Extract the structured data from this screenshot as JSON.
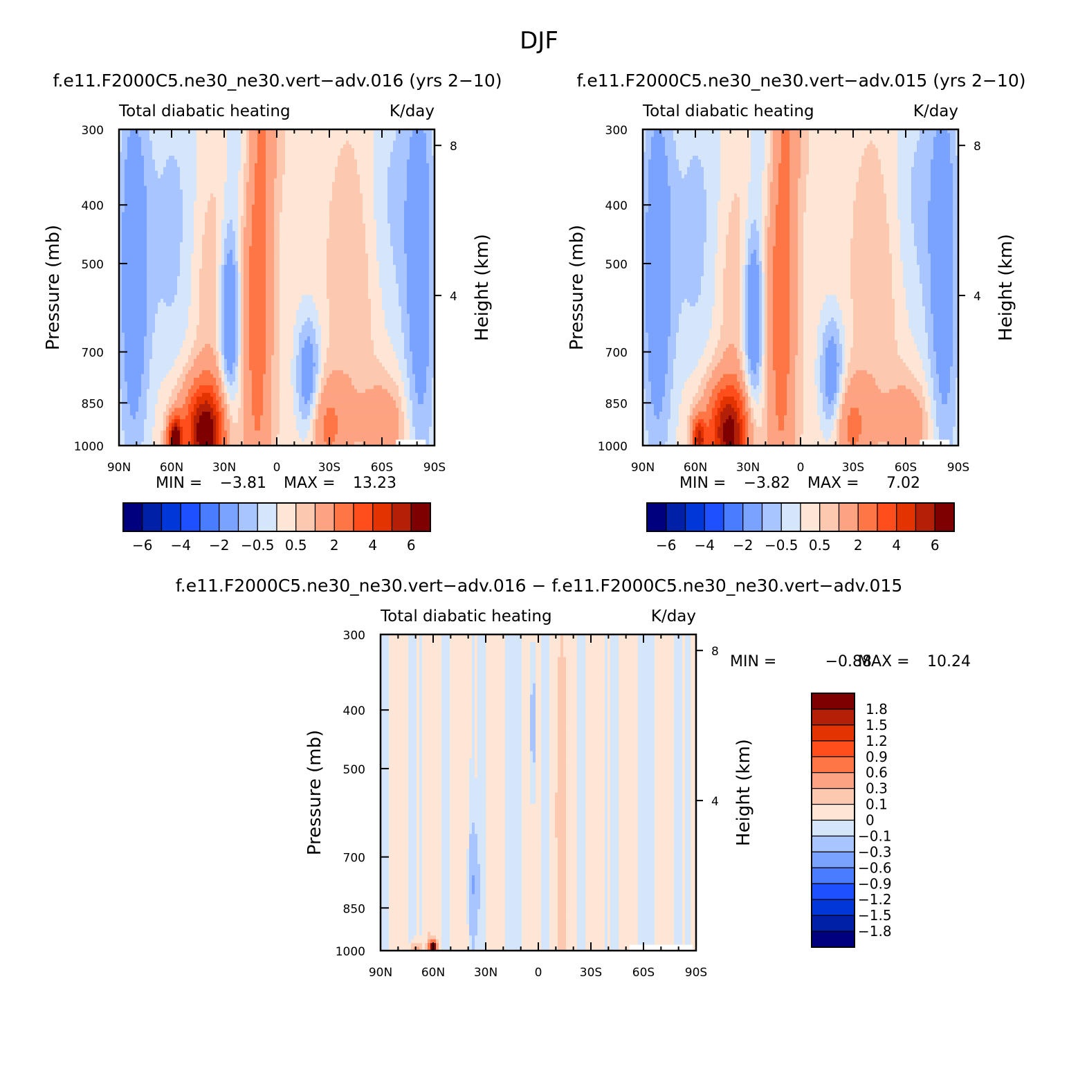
{
  "page_title": "DJF",
  "ticks": {
    "pressure": [
      "300",
      "400",
      "500",
      "700",
      "850",
      "1000"
    ],
    "pressure_values": [
      300,
      400,
      500,
      700,
      850,
      1000
    ],
    "latitude": [
      "90N",
      "60N",
      "30N",
      "0",
      "30S",
      "60S",
      "90S"
    ],
    "height": [
      "8",
      "4"
    ],
    "height_km": [
      8,
      4
    ]
  },
  "colors": {
    "diverging_16": [
      "#00007f",
      "#0020a8",
      "#0037d8",
      "#1e50ff",
      "#4a7cff",
      "#7aa3ff",
      "#a9c5ff",
      "#d5e6fb",
      "#fde6d6",
      "#fcc8b0",
      "#fda381",
      "#fe7645",
      "#ff4d1c",
      "#e33300",
      "#b42007",
      "#7f0000"
    ]
  },
  "chart_data": [
    {
      "type": "heatmap",
      "title": "f.e11.F2000C5.ne30_ne30.vert−adv.016 (yrs 2−10)",
      "left_string": "Total diabatic heating",
      "right_string": "K/day",
      "ylabel": "Pressure (mb)",
      "ylabel_right": "Height (km)",
      "xlim": [
        90,
        -90
      ],
      "ylim": [
        1000,
        300
      ],
      "y_log_scale": true,
      "min_label": "MIN =",
      "min_value": "−3.81",
      "max_label": "MAX =",
      "max_value": "13.23",
      "colorbar_orientation": "horizontal",
      "colorbar_levels": [
        -6,
        -5,
        -4,
        -3,
        -2,
        -1,
        -0.5,
        0,
        0.5,
        1,
        2,
        3,
        4,
        5,
        6
      ],
      "colorbar_labels": [
        "−6",
        "−4",
        "−2",
        "−0.5",
        "0.5",
        "2",
        "4",
        "6"
      ],
      "notable_regions": [
        {
          "lat": 12,
          "plev": 420,
          "value": 2.0
        },
        {
          "lat": 40,
          "plev": 970,
          "value": 5.5
        },
        {
          "lat": 58,
          "plev": 975,
          "value": 6.5
        },
        {
          "lat": 30,
          "plev": 620,
          "value": -2.0
        },
        {
          "lat": -20,
          "plev": 790,
          "value": -1.5
        },
        {
          "lat": 82,
          "plev": 500,
          "value": -1.5
        }
      ]
    },
    {
      "type": "heatmap",
      "title": "f.e11.F2000C5.ne30_ne30.vert−adv.015 (yrs 2−10)",
      "left_string": "Total diabatic heating",
      "right_string": "K/day",
      "ylabel": "Pressure (mb)",
      "ylabel_right": "Height (km)",
      "xlim": [
        90,
        -90
      ],
      "ylim": [
        1000,
        300
      ],
      "y_log_scale": true,
      "min_label": "MIN =",
      "min_value": "−3.82",
      "max_label": "MAX =",
      "max_value": "7.02",
      "colorbar_orientation": "horizontal",
      "colorbar_levels": [
        -6,
        -5,
        -4,
        -3,
        -2,
        -1,
        -0.5,
        0,
        0.5,
        1,
        2,
        3,
        4,
        5,
        6
      ],
      "colorbar_labels": [
        "−6",
        "−4",
        "−2",
        "−0.5",
        "0.5",
        "2",
        "4",
        "6"
      ],
      "notable_regions": [
        {
          "lat": 12,
          "plev": 420,
          "value": 2.0
        },
        {
          "lat": 40,
          "plev": 970,
          "value": 5.0
        },
        {
          "lat": 58,
          "plev": 975,
          "value": 5.0
        },
        {
          "lat": 30,
          "plev": 620,
          "value": -2.0
        },
        {
          "lat": -20,
          "plev": 790,
          "value": -1.5
        },
        {
          "lat": 82,
          "plev": 500,
          "value": -1.5
        }
      ]
    },
    {
      "type": "heatmap",
      "title": "f.e11.F2000C5.ne30_ne30.vert−adv.016 − f.e11.F2000C5.ne30_ne30.vert−adv.015",
      "left_string": "Total diabatic heating",
      "right_string": "K/day",
      "ylabel": "Pressure (mb)",
      "ylabel_right": "Height (km)",
      "xlim": [
        90,
        -90
      ],
      "ylim": [
        1000,
        300
      ],
      "y_log_scale": true,
      "min_label": "MIN =",
      "min_value": "−0.88",
      "max_label": "MAX =",
      "max_value": "10.24",
      "colorbar_orientation": "vertical",
      "colorbar_levels": [
        -1.8,
        -1.5,
        -1.2,
        -0.9,
        -0.6,
        -0.3,
        -0.1,
        0,
        0.1,
        0.3,
        0.6,
        0.9,
        1.2,
        1.5,
        1.8
      ],
      "colorbar_labels": [
        "1.8",
        "1.5",
        "1.2",
        "0.9",
        "0.6",
        "0.3",
        "0.1",
        "0",
        "−0.1",
        "−0.3",
        "−0.6",
        "−0.9",
        "−1.2",
        "−1.5",
        "−1.8"
      ],
      "notable_regions": [
        {
          "lat": 60,
          "plev": 985,
          "value": 1.8
        },
        {
          "lat": 37,
          "plev": 780,
          "value": -0.3
        },
        {
          "lat": 3,
          "plev": 450,
          "value": -0.3
        },
        {
          "lat": -12,
          "plev": 600,
          "value": 0.1
        }
      ]
    }
  ]
}
